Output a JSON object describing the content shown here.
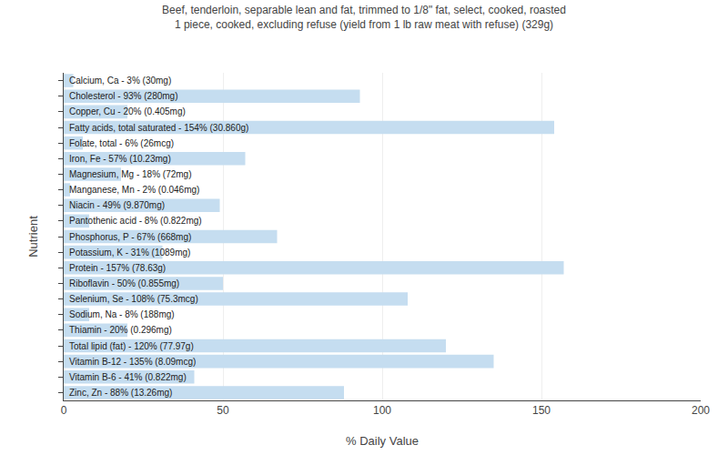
{
  "chart_data": {
    "type": "bar",
    "orientation": "horizontal",
    "title": "Beef, tenderloin, separable lean and fat, trimmed to 1/8\" fat, select, cooked, roasted\n1 piece, cooked, excluding refuse (yield from 1 lb raw meat with refuse) (329g)",
    "xlabel": "% Daily Value",
    "ylabel": "Nutrient",
    "categories": [
      "Calcium, Ca - 3% (30mg)",
      "Cholesterol - 93% (280mg)",
      "Copper, Cu - 20% (0.405mg)",
      "Fatty acids, total saturated - 154% (30.860g)",
      "Folate, total - 6% (26mcg)",
      "Iron, Fe - 57% (10.23mg)",
      "Magnesium, Mg - 18% (72mg)",
      "Manganese, Mn - 2% (0.046mg)",
      "Niacin - 49% (9.870mg)",
      "Pantothenic acid - 8% (0.822mg)",
      "Phosphorus, P - 67% (668mg)",
      "Potassium, K - 31% (1089mg)",
      "Protein - 157% (78.63g)",
      "Riboflavin - 50% (0.855mg)",
      "Selenium, Se - 108% (75.3mcg)",
      "Sodium, Na - 8% (188mg)",
      "Thiamin - 20% (0.296mg)",
      "Total lipid (fat) - 120% (77.97g)",
      "Vitamin B-12 - 135% (8.09mcg)",
      "Vitamin B-6 - 41% (0.822mg)",
      "Zinc, Zn - 88% (13.26mg)"
    ],
    "values": [
      3,
      93,
      20,
      154,
      6,
      57,
      18,
      2,
      49,
      8,
      67,
      31,
      157,
      50,
      108,
      8,
      20,
      120,
      135,
      41,
      88
    ],
    "color": "#c5ddf0",
    "xlim": [
      0,
      200
    ],
    "xticks": [
      0,
      50,
      100,
      150,
      200
    ],
    "grid": true,
    "tick_labels": "x"
  }
}
